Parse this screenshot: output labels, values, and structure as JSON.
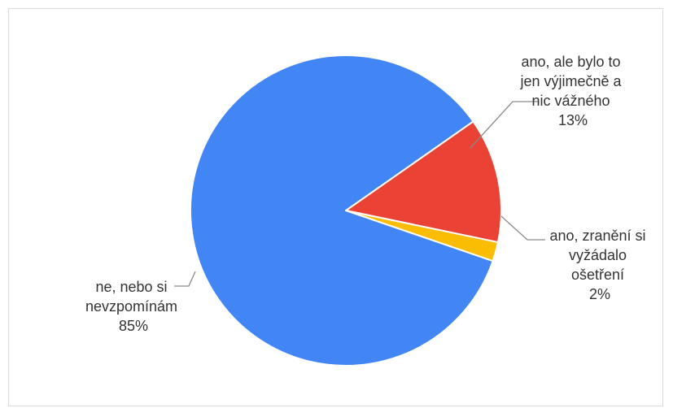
{
  "chart_data": {
    "type": "pie",
    "title": "",
    "start_angle_deg": 55,
    "direction": "clockwise",
    "slices": [
      {
        "label_lines": [
          "ano, ale bylo to",
          "jen výjimečně a",
          "nic vážného"
        ],
        "percent_label": "13%",
        "value": 13,
        "color": "#ea4335"
      },
      {
        "label_lines": [
          "ano, zranění si",
          "vyžádalo",
          "ošetření"
        ],
        "percent_label": "2%",
        "value": 2,
        "color": "#fbbc04"
      },
      {
        "label_lines": [
          "ne, nebo si",
          "nevzpomínám"
        ],
        "percent_label": "85%",
        "value": 85,
        "color": "#4285f4"
      }
    ]
  }
}
